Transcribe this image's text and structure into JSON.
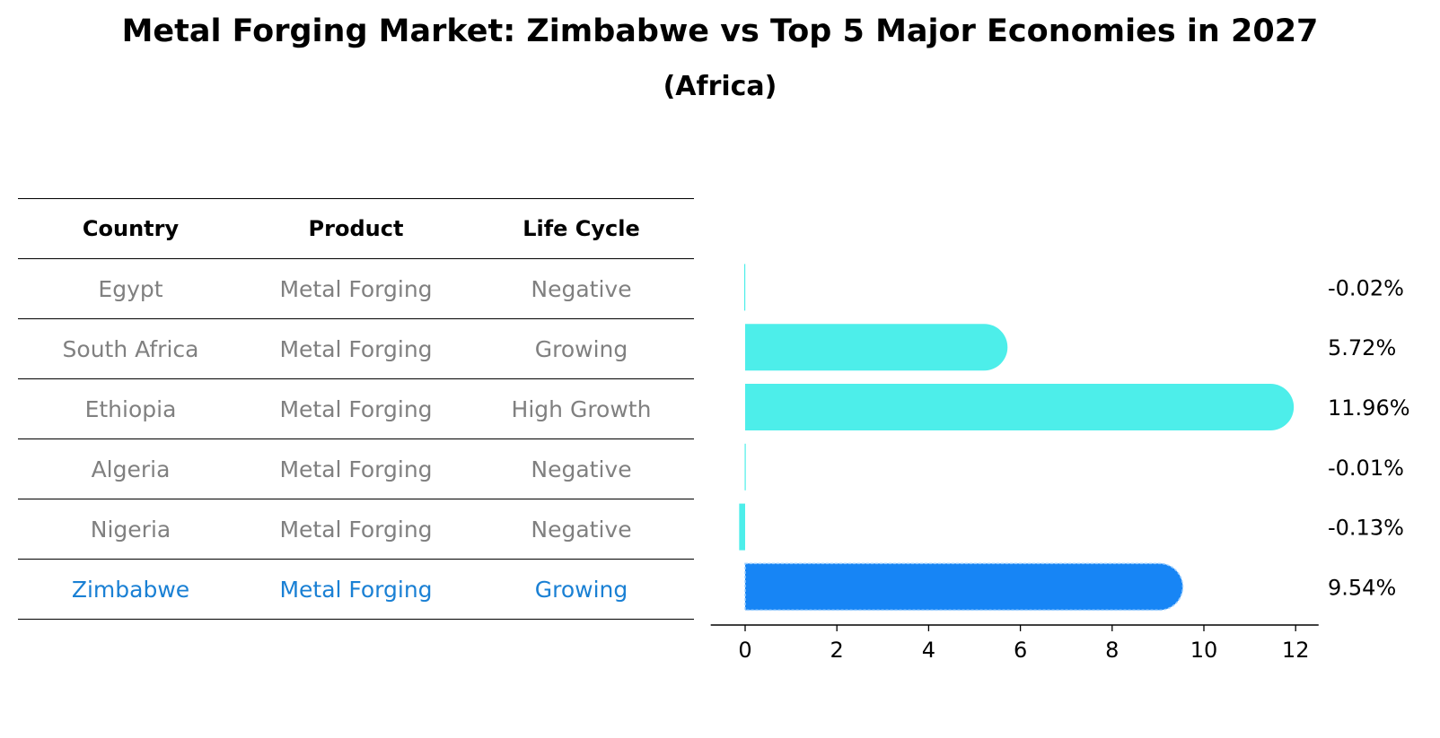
{
  "title": "Metal Forging Market: Zimbabwe vs Top 5 Major Economies in 2027",
  "subtitle": "(Africa)",
  "colors": {
    "bar": "#4deeea",
    "highlight_bar": "#1785f5",
    "highlight_text": "#1a80d4",
    "muted_text": "#808080"
  },
  "table": {
    "headers": [
      "Country",
      "Product",
      "Life Cycle"
    ],
    "rows": [
      {
        "country": "Egypt",
        "product": "Metal Forging",
        "life_cycle": "Negative"
      },
      {
        "country": "South Africa",
        "product": "Metal Forging",
        "life_cycle": "Growing"
      },
      {
        "country": "Ethiopia",
        "product": "Metal Forging",
        "life_cycle": "High Growth"
      },
      {
        "country": "Algeria",
        "product": "Metal Forging",
        "life_cycle": "Negative"
      },
      {
        "country": "Nigeria",
        "product": "Metal Forging",
        "life_cycle": "Negative"
      },
      {
        "country": "Zimbabwe",
        "product": "Metal Forging",
        "life_cycle": "Growing"
      }
    ]
  },
  "chart_data": {
    "type": "bar",
    "orientation": "horizontal",
    "categories": [
      "Egypt",
      "South Africa",
      "Ethiopia",
      "Algeria",
      "Nigeria",
      "Zimbabwe"
    ],
    "values": [
      -0.02,
      5.72,
      11.96,
      -0.01,
      -0.13,
      9.54
    ],
    "value_labels": [
      "-0.02%",
      "5.72%",
      "11.96%",
      "-0.01%",
      "-0.13%",
      "9.54%"
    ],
    "highlight": "Zimbabwe",
    "xlim": [
      -0.75,
      12.5
    ],
    "xticks": [
      0,
      2,
      4,
      6,
      8,
      10,
      12
    ],
    "xlabel": "",
    "ylabel": "",
    "grid": false,
    "legend": "none"
  }
}
